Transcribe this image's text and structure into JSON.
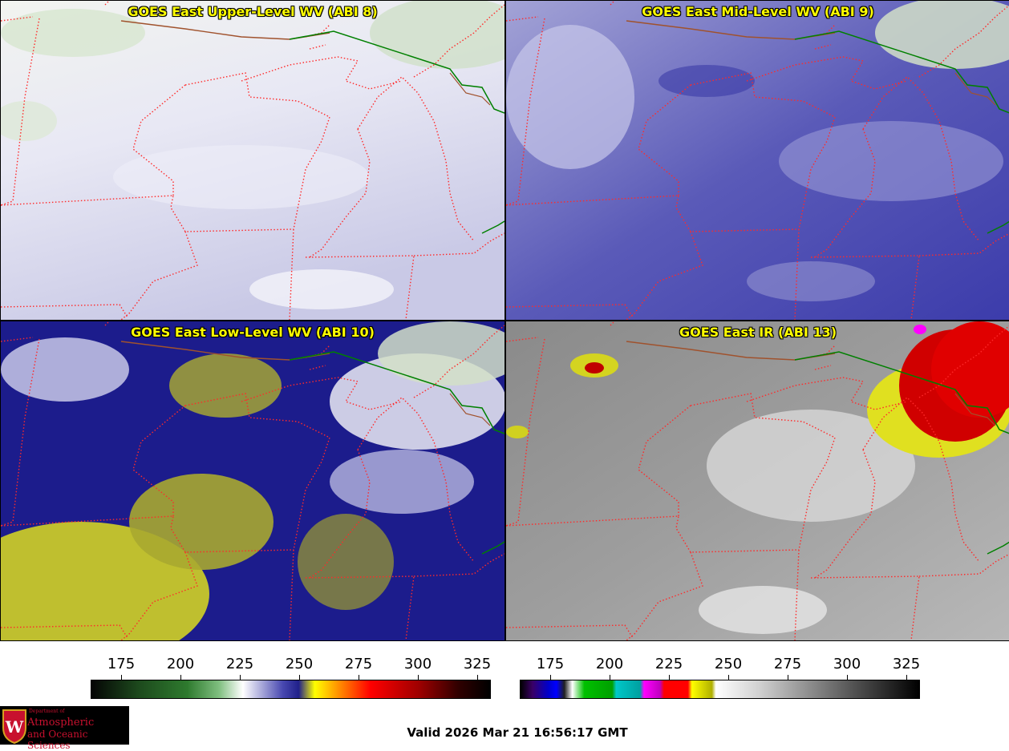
{
  "panels": [
    {
      "title": "GOES East Upper-Level WV (ABI 8)"
    },
    {
      "title": "GOES East Mid-Level WV (ABI 9)"
    },
    {
      "title": "GOES East Low-Level WV (ABI 10)"
    },
    {
      "title": "GOES East IR (ABI 13)"
    }
  ],
  "colorbar_left": {
    "ticks": [
      "175",
      "200",
      "225",
      "250",
      "275",
      "300",
      "325"
    ]
  },
  "colorbar_right": {
    "ticks": [
      "175",
      "200",
      "225",
      "250",
      "275",
      "300",
      "325"
    ]
  },
  "logo": {
    "line1": "Department of",
    "line2": "Atmospheric",
    "line3": "and Oceanic Sciences"
  },
  "valid_time": "Valid 2026 Mar 21 16:56:17 GMT",
  "colors": {
    "title_text": "#ffff00",
    "borders": "#ff2020",
    "coast": "#008000"
  }
}
